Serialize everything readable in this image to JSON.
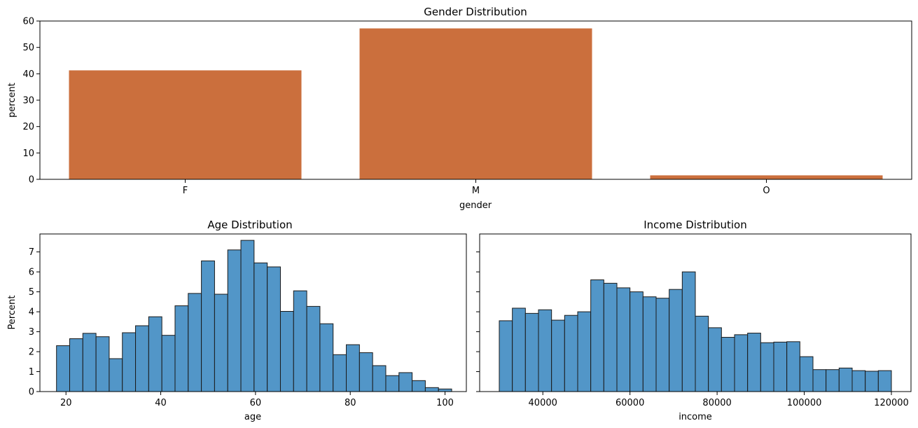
{
  "colors": {
    "gender_bar": "#cb6f3d",
    "hist_bar": "#5296c8",
    "hist_edge": "#1a1a1a"
  },
  "chart_data": [
    {
      "id": "gender",
      "type": "bar",
      "title": "Gender Distribution",
      "xlabel": "gender",
      "ylabel": "percent",
      "categories": [
        "F",
        "M",
        "O"
      ],
      "values": [
        41.3,
        57.2,
        1.5
      ],
      "ylim": [
        0,
        60
      ],
      "yticks": [
        0,
        10,
        20,
        30,
        40,
        50,
        60
      ],
      "ytick_labels": [
        "0",
        "10",
        "20",
        "30",
        "40",
        "50",
        "60"
      ],
      "grid": false
    },
    {
      "id": "age",
      "type": "bar",
      "title": "Age Distribution",
      "xlabel": "age",
      "ylabel": "Percent",
      "bin_start": 18,
      "bin_width": 2.78,
      "values": [
        2.3,
        2.65,
        2.92,
        2.75,
        1.65,
        2.95,
        3.3,
        3.75,
        2.82,
        4.3,
        4.92,
        6.55,
        4.88,
        7.1,
        7.58,
        6.45,
        6.25,
        4.02,
        5.05,
        4.27,
        3.4,
        1.85,
        2.35,
        1.95,
        1.3,
        0.8,
        0.95,
        0.55,
        0.2,
        0.13
      ],
      "xlim": [
        14.5,
        104.5
      ],
      "ylim": [
        0,
        7.9
      ],
      "xticks": [
        20,
        40,
        60,
        80,
        100
      ],
      "xtick_labels": [
        "20",
        "40",
        "60",
        "80",
        "100"
      ],
      "yticks": [
        0,
        1,
        2,
        3,
        4,
        5,
        6,
        7
      ],
      "ytick_labels": [
        "0",
        "1",
        "2",
        "3",
        "4",
        "5",
        "6",
        "7"
      ],
      "grid": false
    },
    {
      "id": "income",
      "type": "bar",
      "title": "Income Distribution",
      "xlabel": "income",
      "ylabel": "",
      "bin_start": 30000,
      "bin_width": 3000,
      "values": [
        3.55,
        4.18,
        3.92,
        4.1,
        3.58,
        3.82,
        4.0,
        5.6,
        5.43,
        5.2,
        5.0,
        4.75,
        4.68,
        5.12,
        6.0,
        3.78,
        3.2,
        2.72,
        2.85,
        2.93,
        2.45,
        2.48,
        2.5,
        1.75,
        1.1,
        1.1,
        1.18,
        1.05,
        1.02,
        1.05
      ],
      "xlim": [
        25500,
        124500
      ],
      "ylim": [
        0,
        7.9
      ],
      "xticks": [
        40000,
        60000,
        80000,
        100000,
        120000
      ],
      "xtick_labels": [
        "40000",
        "60000",
        "80000",
        "100000",
        "120000"
      ],
      "yticks": [
        0,
        1,
        2,
        3,
        4,
        5,
        6,
        7
      ],
      "ytick_labels": [
        "",
        "",
        "",
        "",
        "",
        "",
        "",
        ""
      ],
      "grid": false
    }
  ]
}
